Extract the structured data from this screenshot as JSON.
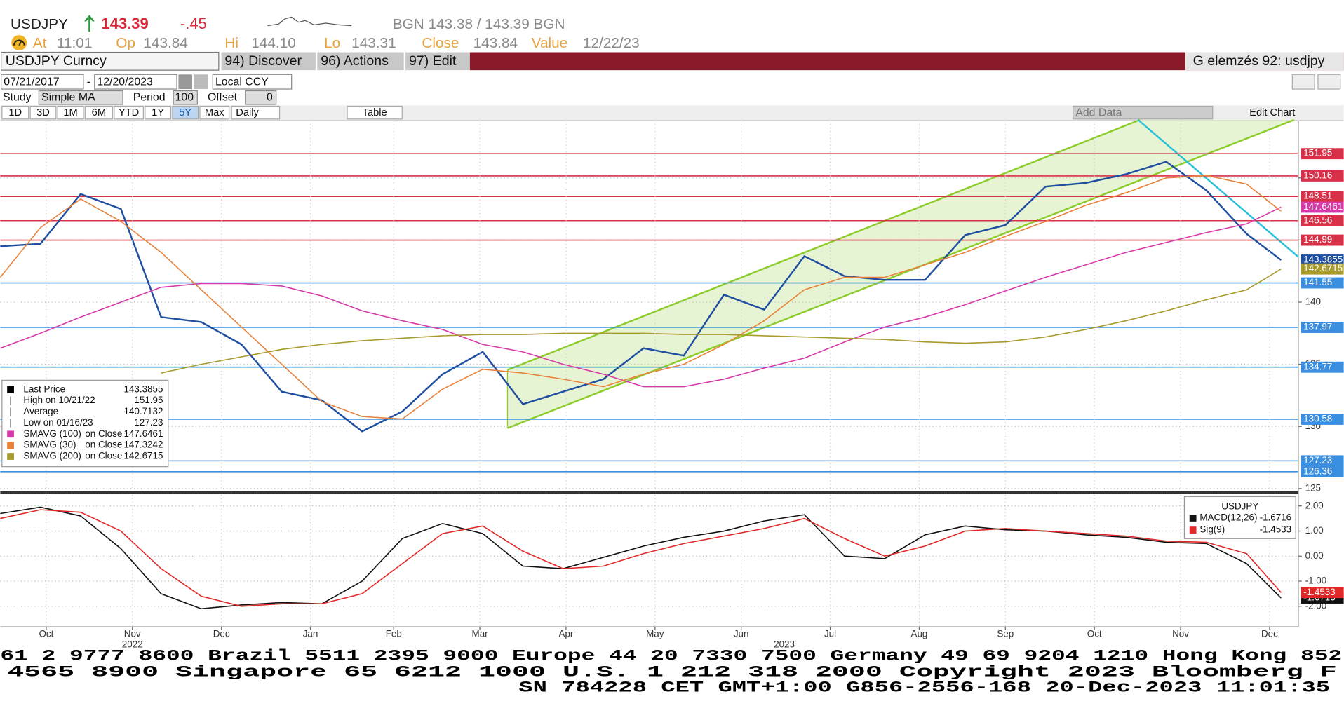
{
  "header": {
    "ticker": "USDJPY",
    "last": "143.39",
    "change": "-.45",
    "bid_ask": "BGN 143.38 / 143.39 BGN",
    "fields": [
      {
        "label": "At",
        "value": "11:01"
      },
      {
        "label": "Op",
        "value": "143.84"
      },
      {
        "label": "Hi",
        "value": "144.10"
      },
      {
        "label": "Lo",
        "value": "143.31"
      },
      {
        "label": "Close",
        "value": "143.84"
      },
      {
        "label": "Value",
        "value": "12/22/23"
      }
    ]
  },
  "toolbar": {
    "security": "USDJPY Curncy",
    "menus": [
      "94) Discover",
      "96) Actions",
      "97) Edit"
    ],
    "right": "G elemzés 92: usdjpy"
  },
  "controls": {
    "start": "07/21/2017",
    "end": "12/20/2023",
    "currency": "Local CCY",
    "study_label": "Study",
    "study": "Simple MA",
    "period_label": "Period",
    "period": "100",
    "offset_label": "Offset",
    "offset": "0",
    "ranges": [
      "1D",
      "3D",
      "1M",
      "6M",
      "YTD",
      "1Y",
      "5Y",
      "Max"
    ],
    "frequency": "Daily",
    "table": "Table",
    "add_data": "Add Data",
    "edit_chart": "Edit Chart"
  },
  "chart_data": [
    {
      "type": "line",
      "x": [
        "2022-09-30",
        "2022-10-14",
        "2022-10-28",
        "2022-11-11",
        "2022-11-25",
        "2022-12-09",
        "2022-12-23",
        "2023-01-06",
        "2023-01-20",
        "2023-02-03",
        "2023-02-17",
        "2023-03-03",
        "2023-03-17",
        "2023-03-31",
        "2023-04-14",
        "2023-04-28",
        "2023-05-12",
        "2023-05-26",
        "2023-06-09",
        "2023-06-23",
        "2023-07-07",
        "2023-07-21",
        "2023-08-04",
        "2023-08-18",
        "2023-09-01",
        "2023-09-15",
        "2023-09-29",
        "2023-10-13",
        "2023-10-27",
        "2023-11-10",
        "2023-11-24",
        "2023-12-08",
        "2023-12-20"
      ],
      "xlim": [
        "2022-09-30",
        "2023-12-26"
      ],
      "ylim": [
        124.9,
        154.6
      ],
      "yticks": [
        125,
        130,
        135,
        140,
        145,
        150
      ],
      "grid": true,
      "series": [
        {
          "name": "Last Price",
          "color": "#1f4fa0",
          "tag": true,
          "values": [
            144.5,
            144.7,
            148.7,
            147.5,
            138.8,
            138.4,
            136.6,
            132.8,
            132.1,
            129.6,
            131.2,
            134.2,
            136.0,
            131.8,
            132.8,
            133.8,
            136.3,
            135.7,
            140.6,
            139.4,
            143.7,
            142.1,
            141.8,
            141.8,
            145.4,
            146.2,
            149.3,
            149.6,
            150.3,
            151.3,
            149.0,
            145.5,
            143.3855
          ]
        },
        {
          "name": "SMAVG (100)",
          "source": "on Close",
          "color": "#d63aa8",
          "tag": true,
          "values": [
            136.3,
            137.5,
            138.8,
            140,
            141.2,
            141.5,
            141.5,
            141.3,
            140.5,
            139.3,
            138.5,
            137.8,
            136.6,
            136,
            135,
            134.2,
            133.2,
            133.2,
            133.8,
            134.7,
            135.5,
            136.8,
            138,
            138.8,
            139.8,
            140.9,
            142,
            143,
            144,
            144.8,
            145.6,
            146.3,
            147.6461
          ]
        },
        {
          "name": "SMAVG (30)",
          "source": "on Close",
          "color": "#e8823a",
          "values": [
            142,
            146,
            148.3,
            146.5,
            144,
            141,
            138,
            135,
            132,
            130.8,
            130.6,
            133,
            134.6,
            134.3,
            133.8,
            133.2,
            134.2,
            135,
            136.6,
            138.5,
            141,
            142,
            142,
            143,
            144,
            145.3,
            146.5,
            147.8,
            148.8,
            150,
            150.2,
            149.5,
            147.3242
          ]
        },
        {
          "name": "SMAVG (200)",
          "source": "on Close",
          "color": "#a89a2c",
          "tag": true,
          "values": [
            null,
            null,
            null,
            null,
            134.3,
            135,
            135.6,
            136.2,
            136.6,
            136.9,
            137.1,
            137.3,
            137.4,
            137.4,
            137.5,
            137.5,
            137.5,
            137.4,
            137.4,
            137.3,
            137.2,
            137.1,
            137,
            136.8,
            136.7,
            136.8,
            137.2,
            137.8,
            138.5,
            139.3,
            140.2,
            141,
            142.6715
          ]
        }
      ],
      "stats": [
        {
          "name": "High on 10/21/22",
          "value": 151.95
        },
        {
          "name": "Average",
          "value": 140.7132
        },
        {
          "name": "Low on 01/16/23",
          "value": 127.23
        }
      ],
      "levels": [
        {
          "value": 151.95,
          "color": "#d9304a"
        },
        {
          "value": 150.16,
          "color": "#d9304a"
        },
        {
          "value": 148.51,
          "color": "#d9304a"
        },
        {
          "value": 146.56,
          "color": "#d9304a"
        },
        {
          "value": 144.99,
          "color": "#d9304a"
        },
        {
          "value": 141.55,
          "color": "#3a8fe0"
        },
        {
          "value": 137.97,
          "color": "#3a8fe0"
        },
        {
          "value": 134.77,
          "color": "#3a8fe0"
        },
        {
          "value": 130.58,
          "color": "#3a8fe0"
        },
        {
          "value": 127.23,
          "color": "#3a8fe0"
        },
        {
          "value": 126.36,
          "color": "#3a8fe0"
        }
      ]
    },
    {
      "type": "line",
      "legend_title": "USDJPY",
      "x": [
        "2022-09-30",
        "2022-10-14",
        "2022-10-28",
        "2022-11-11",
        "2022-11-25",
        "2022-12-09",
        "2022-12-23",
        "2023-01-06",
        "2023-01-20",
        "2023-02-03",
        "2023-02-17",
        "2023-03-03",
        "2023-03-17",
        "2023-03-31",
        "2023-04-14",
        "2023-04-28",
        "2023-05-12",
        "2023-05-26",
        "2023-06-09",
        "2023-06-23",
        "2023-07-07",
        "2023-07-21",
        "2023-08-04",
        "2023-08-18",
        "2023-09-01",
        "2023-09-15",
        "2023-09-29",
        "2023-10-13",
        "2023-10-27",
        "2023-11-10",
        "2023-11-24",
        "2023-12-08",
        "2023-12-20"
      ],
      "xlim": [
        "2022-09-30",
        "2023-12-26"
      ],
      "xticks": [
        {
          "value": "2022-10-16",
          "label": "Oct"
        },
        {
          "value": "2022-11-15",
          "label": "Nov"
        },
        {
          "value": "2022-12-16",
          "label": "Dec"
        },
        {
          "value": "2023-01-16",
          "label": "Jan"
        },
        {
          "value": "2023-02-14",
          "label": "Feb"
        },
        {
          "value": "2023-03-16",
          "label": "Mar"
        },
        {
          "value": "2023-04-15",
          "label": "Apr"
        },
        {
          "value": "2023-05-16",
          "label": "May"
        },
        {
          "value": "2023-06-15",
          "label": "Jun"
        },
        {
          "value": "2023-07-16",
          "label": "Jul"
        },
        {
          "value": "2023-08-16",
          "label": "Aug"
        },
        {
          "value": "2023-09-15",
          "label": "Sep"
        },
        {
          "value": "2023-10-16",
          "label": "Oct"
        },
        {
          "value": "2023-11-15",
          "label": "Nov"
        },
        {
          "value": "2023-12-16",
          "label": "Dec"
        }
      ],
      "year_labels": [
        {
          "value": "2022-11-15",
          "label": "2022"
        },
        {
          "value": "2023-06-30",
          "label": "2023"
        }
      ],
      "ylim": [
        -2.82,
        2.44
      ],
      "yticks": [
        {
          "value": 2,
          "label": "2.00"
        },
        {
          "value": 1,
          "label": "1.00"
        },
        {
          "value": 0,
          "label": "0.00"
        },
        {
          "value": -1,
          "label": "-1.00"
        },
        {
          "value": -2,
          "label": "-2.00"
        }
      ],
      "grid": true,
      "series": [
        {
          "name": "MACD(12,26)",
          "color": "#111111",
          "tag": true,
          "values": [
            1.7,
            1.95,
            1.6,
            0.3,
            -1.5,
            -2.1,
            -1.95,
            -1.85,
            -1.9,
            -1.0,
            0.7,
            1.3,
            0.9,
            -0.4,
            -0.5,
            -0.05,
            0.4,
            0.75,
            1.0,
            1.4,
            1.65,
            0.0,
            -0.1,
            0.85,
            1.2,
            1.05,
            1.0,
            0.85,
            0.75,
            0.55,
            0.5,
            -0.3,
            -1.6716
          ]
        },
        {
          "name": "Sig(9)",
          "color": "#e02828",
          "tag": true,
          "values": [
            1.5,
            1.85,
            1.75,
            1.0,
            -0.5,
            -1.6,
            -2.0,
            -1.9,
            -1.9,
            -1.5,
            -0.3,
            0.9,
            1.2,
            0.2,
            -0.5,
            -0.4,
            0.1,
            0.5,
            0.8,
            1.1,
            1.5,
            0.7,
            0.0,
            0.4,
            1.0,
            1.1,
            1.0,
            0.9,
            0.8,
            0.6,
            0.55,
            0.1,
            -1.4533
          ]
        }
      ]
    }
  ],
  "footer": [
    "61 2 9777 8600 Brazil 5511 2395 9000 Europe 44 20 7330 7500 Germany 49 69 9204 1210 Hong Kong 852",
    "4565 8900     Singapore 65 6212 1000     U.S. 1 212 318 2000     Copyright 2023 Bloomberg F",
    "SN 784228 CET  GMT+1:00 G856-2556-168 20-Dec-2023 11:01:35"
  ]
}
